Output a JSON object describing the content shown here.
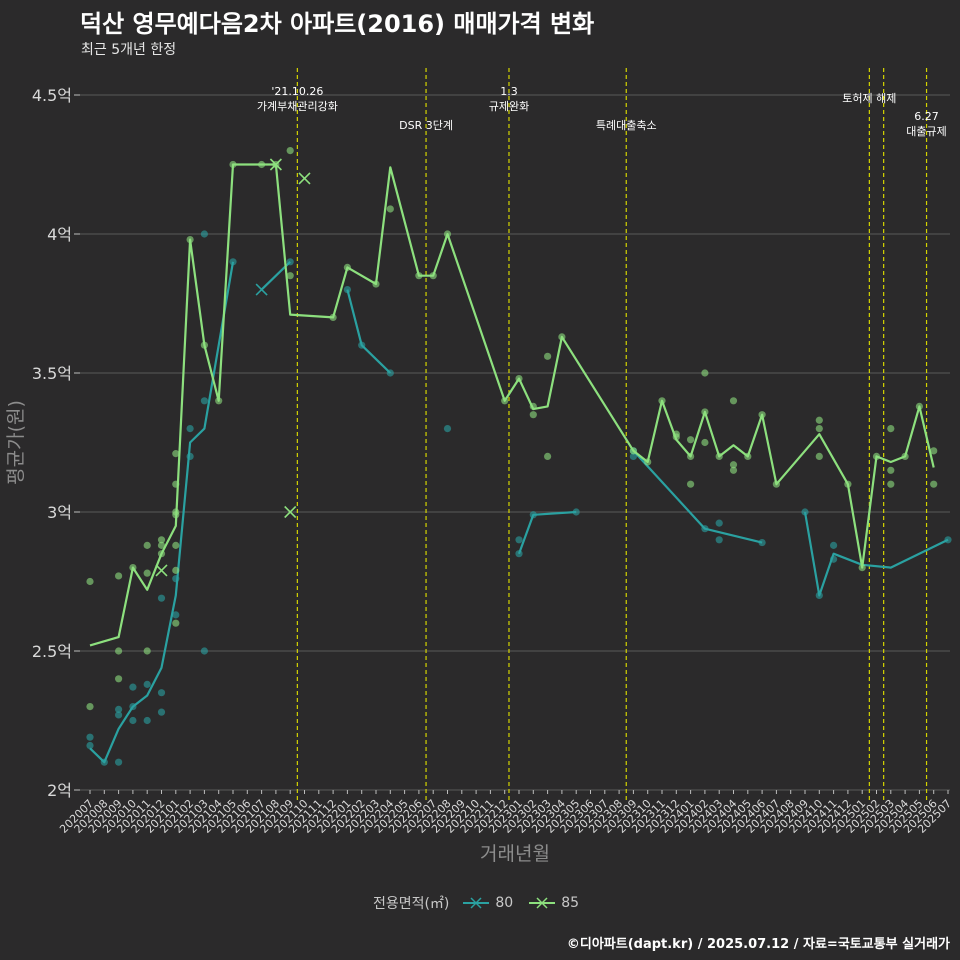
{
  "title": "덕산 영무예다음2차 아파트(2016) 매매가격 변화",
  "subtitle": "최근 5개년 한정",
  "caption": "©디아파트(dapt.kr) / 2025.07.12 / 자료=국토교통부 실거래가",
  "legend": {
    "title": "전용면적(㎡)",
    "items": [
      {
        "label": "80",
        "color": "#2aa1a1"
      },
      {
        "label": "85",
        "color": "#8de07e"
      }
    ]
  },
  "chart_data": {
    "type": "line",
    "xlabel": "거래년월",
    "ylabel": "평균가(원)",
    "ylim": [
      2,
      4.5
    ],
    "y_ticks": [
      {
        "value": 2,
        "label": "2억"
      },
      {
        "value": 2.5,
        "label": "2.5억"
      },
      {
        "value": 3,
        "label": "3억"
      },
      {
        "value": 3.5,
        "label": "3.5억"
      },
      {
        "value": 4,
        "label": "4억"
      },
      {
        "value": 4.5,
        "label": "4.5억"
      }
    ],
    "categories": [
      "202007",
      "202008",
      "202009",
      "202010",
      "202011",
      "202012",
      "202101",
      "202102",
      "202103",
      "202104",
      "202105",
      "202106",
      "202107",
      "202108",
      "202109",
      "202110",
      "202111",
      "202112",
      "202201",
      "202202",
      "202203",
      "202204",
      "202205",
      "202206",
      "202207",
      "202208",
      "202209",
      "202210",
      "202211",
      "202212",
      "202301",
      "202302",
      "202303",
      "202304",
      "202305",
      "202306",
      "202307",
      "202308",
      "202309",
      "202310",
      "202311",
      "202312",
      "202401",
      "202402",
      "202403",
      "202404",
      "202405",
      "202406",
      "202407",
      "202408",
      "202409",
      "202410",
      "202411",
      "202412",
      "202501",
      "202502",
      "202503",
      "202504",
      "202505",
      "202506",
      "202507"
    ],
    "events": [
      {
        "x": 14.5,
        "lines": [
          "'21.10.26",
          "가계부채관리강화"
        ]
      },
      {
        "x": 23.5,
        "lines": [
          "DSR 3단계"
        ]
      },
      {
        "x": 29.3,
        "lines": [
          "1.3",
          "규제완화"
        ]
      },
      {
        "x": 37.5,
        "lines": [
          "특례대출축소"
        ]
      },
      {
        "x": 54.5,
        "lines": [
          "토허제 해제"
        ]
      },
      {
        "x": 55.5,
        "lines": []
      },
      {
        "x": 58.5,
        "lines": [
          "6.27",
          "대출규제"
        ]
      }
    ],
    "series": [
      {
        "name": "80",
        "color": "#2aa1a1",
        "segments": [
          [
            [
              0,
              2.15
            ],
            [
              1,
              2.1
            ],
            [
              2,
              2.22
            ],
            [
              3,
              2.3
            ],
            [
              4,
              2.34
            ],
            [
              5,
              2.44
            ],
            [
              6,
              2.7
            ],
            [
              7,
              3.25
            ],
            [
              8,
              3.3
            ],
            [
              9,
              3.6
            ],
            [
              10,
              3.9
            ]
          ],
          [
            [
              12,
              3.8
            ],
            [
              14,
              3.9
            ]
          ],
          [
            [
              18,
              3.8
            ],
            [
              19,
              3.6
            ],
            [
              21,
              3.5
            ]
          ],
          [
            [
              30,
              2.85
            ],
            [
              31,
              2.99
            ],
            [
              34,
              3.0
            ]
          ],
          [
            [
              38,
              3.22
            ],
            [
              43,
              2.94
            ],
            [
              47,
              2.89
            ]
          ],
          [
            [
              50,
              3.0
            ],
            [
              51,
              2.7
            ],
            [
              52,
              2.85
            ],
            [
              54,
              2.81
            ],
            [
              56,
              2.8
            ],
            [
              60,
              2.9
            ]
          ]
        ],
        "points": [
          [
            0,
            2.19
          ],
          [
            0,
            2.16
          ],
          [
            1,
            2.1
          ],
          [
            2,
            2.29
          ],
          [
            2,
            2.27
          ],
          [
            2,
            2.1
          ],
          [
            3,
            2.37
          ],
          [
            3,
            2.3
          ],
          [
            3,
            2.25
          ],
          [
            4,
            2.38
          ],
          [
            4,
            2.25
          ],
          [
            5,
            2.35
          ],
          [
            5,
            2.28
          ],
          [
            5,
            2.69
          ],
          [
            6,
            2.76
          ],
          [
            6,
            2.63
          ],
          [
            7,
            3.3
          ],
          [
            7,
            3.2
          ],
          [
            8,
            4.0
          ],
          [
            8,
            3.4
          ],
          [
            8,
            2.5
          ],
          [
            10,
            3.9
          ],
          [
            14,
            3.9
          ],
          [
            18,
            3.8
          ],
          [
            19,
            3.6
          ],
          [
            21,
            3.5
          ],
          [
            25,
            3.3
          ],
          [
            30,
            2.9
          ],
          [
            30,
            2.85
          ],
          [
            31,
            2.99
          ],
          [
            34,
            3.0
          ],
          [
            38,
            3.22
          ],
          [
            38,
            3.2
          ],
          [
            43,
            2.94
          ],
          [
            44,
            2.96
          ],
          [
            44,
            2.9
          ],
          [
            47,
            2.89
          ],
          [
            50,
            3.0
          ],
          [
            51,
            2.7
          ],
          [
            52,
            2.88
          ],
          [
            52,
            2.83
          ],
          [
            60,
            2.9
          ]
        ],
        "x_marks": [
          [
            12,
            3.8
          ]
        ]
      },
      {
        "name": "85",
        "color": "#8de07e",
        "segments": [
          [
            [
              0,
              2.52
            ],
            [
              2,
              2.55
            ],
            [
              3,
              2.8
            ],
            [
              4,
              2.72
            ],
            [
              5,
              2.85
            ],
            [
              6,
              2.95
            ],
            [
              7,
              3.98
            ],
            [
              8,
              3.6
            ],
            [
              9,
              3.4
            ],
            [
              10,
              4.25
            ],
            [
              12,
              4.25
            ],
            [
              13,
              4.25
            ],
            [
              14,
              3.71
            ],
            [
              17,
              3.7
            ],
            [
              18,
              3.88
            ],
            [
              20,
              3.82
            ],
            [
              21,
              4.24
            ],
            [
              23,
              3.85
            ],
            [
              24,
              3.85
            ],
            [
              25,
              4.0
            ],
            [
              29,
              3.4
            ],
            [
              30,
              3.48
            ],
            [
              31,
              3.37
            ],
            [
              32,
              3.38
            ],
            [
              33,
              3.63
            ],
            [
              38,
              3.22
            ],
            [
              39,
              3.18
            ],
            [
              40,
              3.4
            ],
            [
              41,
              3.26
            ],
            [
              42,
              3.2
            ],
            [
              43,
              3.36
            ],
            [
              44,
              3.2
            ],
            [
              45,
              3.24
            ],
            [
              46,
              3.2
            ],
            [
              47,
              3.35
            ],
            [
              48,
              3.1
            ],
            [
              51,
              3.28
            ],
            [
              53,
              3.1
            ],
            [
              54,
              2.8
            ],
            [
              55,
              3.2
            ],
            [
              56,
              3.18
            ],
            [
              57,
              3.2
            ],
            [
              58,
              3.38
            ],
            [
              59,
              3.16
            ]
          ]
        ],
        "points": [
          [
            0,
            2.75
          ],
          [
            0,
            2.3
          ],
          [
            2,
            2.77
          ],
          [
            2,
            2.5
          ],
          [
            2,
            2.4
          ],
          [
            3,
            2.8
          ],
          [
            4,
            2.88
          ],
          [
            4,
            2.78
          ],
          [
            4,
            2.5
          ],
          [
            5,
            2.9
          ],
          [
            5,
            2.88
          ],
          [
            5,
            2.85
          ],
          [
            6,
            3.21
          ],
          [
            6,
            3.1
          ],
          [
            6,
            3.0
          ],
          [
            6,
            2.99
          ],
          [
            6,
            2.88
          ],
          [
            6,
            2.79
          ],
          [
            6,
            2.6
          ],
          [
            7,
            3.98
          ],
          [
            8,
            3.6
          ],
          [
            9,
            3.4
          ],
          [
            10,
            4.25
          ],
          [
            12,
            4.25
          ],
          [
            13,
            4.25
          ],
          [
            14,
            4.3
          ],
          [
            14,
            3.85
          ],
          [
            17,
            3.7
          ],
          [
            18,
            3.88
          ],
          [
            20,
            3.82
          ],
          [
            21,
            4.09
          ],
          [
            23,
            3.85
          ],
          [
            24,
            3.85
          ],
          [
            25,
            4.0
          ],
          [
            29,
            3.4
          ],
          [
            30,
            3.48
          ],
          [
            31,
            3.38
          ],
          [
            31,
            3.35
          ],
          [
            32,
            3.56
          ],
          [
            32,
            3.2
          ],
          [
            33,
            3.63
          ],
          [
            38,
            3.22
          ],
          [
            39,
            3.18
          ],
          [
            40,
            3.4
          ],
          [
            41,
            3.28
          ],
          [
            41,
            3.27
          ],
          [
            42,
            3.26
          ],
          [
            42,
            3.2
          ],
          [
            42,
            3.1
          ],
          [
            43,
            3.5
          ],
          [
            43,
            3.36
          ],
          [
            43,
            3.25
          ],
          [
            44,
            3.2
          ],
          [
            45,
            3.4
          ],
          [
            45,
            3.17
          ],
          [
            45,
            3.15
          ],
          [
            46,
            3.2
          ],
          [
            47,
            3.35
          ],
          [
            48,
            3.1
          ],
          [
            51,
            3.33
          ],
          [
            51,
            3.3
          ],
          [
            51,
            3.2
          ],
          [
            53,
            3.1
          ],
          [
            54,
            2.8
          ],
          [
            55,
            3.2
          ],
          [
            56,
            3.3
          ],
          [
            56,
            3.15
          ],
          [
            56,
            3.1
          ],
          [
            57,
            3.2
          ],
          [
            58,
            3.38
          ],
          [
            59,
            3.22
          ],
          [
            59,
            3.1
          ]
        ],
        "x_marks": [
          [
            5,
            2.79
          ],
          [
            13,
            4.25
          ],
          [
            14,
            3.0
          ],
          [
            15,
            4.2
          ]
        ]
      }
    ]
  }
}
